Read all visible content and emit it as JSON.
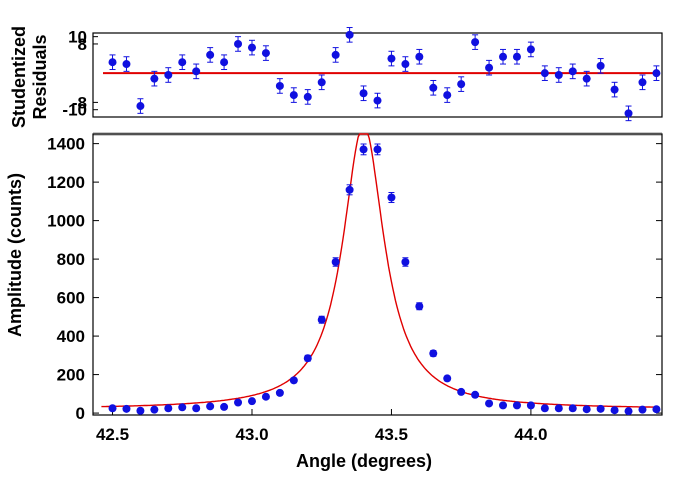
{
  "chart_data": [
    {
      "type": "scatter",
      "title": "",
      "ylabel": "Studentized Residuals",
      "ylabel_lines": [
        "Studentized",
        "Residuals"
      ],
      "ylim": [
        -12,
        11
      ],
      "yticks": [
        10,
        8,
        -8,
        -10
      ],
      "xlim": [
        42.43,
        44.47
      ],
      "fit_line": {
        "y": 0,
        "color": "#e00000"
      },
      "marker_color": "#1010e0",
      "grid": false,
      "series": [
        {
          "x": [
            42.5,
            42.55,
            42.6,
            42.65,
            42.7,
            42.75,
            42.8,
            42.85,
            42.9,
            42.95,
            43.0,
            43.05,
            43.1,
            43.15,
            43.2,
            43.25,
            43.3,
            43.35,
            43.4,
            43.45,
            43.5,
            43.55,
            43.6,
            43.65,
            43.7,
            43.75,
            43.8,
            43.85,
            43.9,
            43.95,
            44.0,
            44.05,
            44.1,
            44.15,
            44.2,
            44.25,
            44.3,
            44.35,
            44.4,
            44.45
          ],
          "y": [
            3,
            2.5,
            -9,
            -1.5,
            -0.5,
            3,
            0.5,
            5,
            3,
            8,
            7,
            5.5,
            -3.5,
            -6,
            -6.5,
            -2.5,
            5,
            10.5,
            -5.5,
            -7.5,
            4,
            2.5,
            4.5,
            -4,
            -6,
            -3,
            8.5,
            1.5,
            4.5,
            4.5,
            6.5,
            0,
            -0.5,
            0.5,
            -1.5,
            2,
            -4.5,
            -11,
            -2.5,
            0
          ],
          "err": [
            2,
            2,
            2,
            2,
            2,
            2,
            2,
            2,
            2,
            2,
            2,
            2,
            2,
            2,
            2,
            2,
            2,
            2,
            2,
            2,
            2,
            2,
            2,
            2,
            2,
            2,
            2,
            2,
            2,
            2,
            2,
            2,
            2,
            2,
            2,
            2,
            2,
            2,
            2,
            2
          ]
        }
      ]
    },
    {
      "type": "scatter",
      "title": "",
      "xlabel": "Angle (degrees)",
      "ylabel": "Amplitude (counts)",
      "xlim": [
        42.43,
        44.47
      ],
      "ylim": [
        -10,
        1450
      ],
      "xticks": [
        42.5,
        43.0,
        43.5,
        44.0
      ],
      "xtick_labels": [
        "42.5",
        "43.0",
        "43.5",
        "44.0"
      ],
      "yticks": [
        0,
        200,
        400,
        600,
        800,
        1000,
        1200,
        1400
      ],
      "marker_color": "#1010e0",
      "fit_color": "#e00000",
      "grid": false,
      "series": [
        {
          "x": [
            42.5,
            42.55,
            42.6,
            42.65,
            42.7,
            42.75,
            42.8,
            42.85,
            42.9,
            42.95,
            43.0,
            43.05,
            43.1,
            43.15,
            43.2,
            43.25,
            43.3,
            43.35,
            43.4,
            43.45,
            43.5,
            43.55,
            43.6,
            43.65,
            43.7,
            43.75,
            43.8,
            43.85,
            43.9,
            43.95,
            44.0,
            44.05,
            44.1,
            44.15,
            44.2,
            44.25,
            44.3,
            44.35,
            44.4,
            44.45
          ],
          "y": [
            25,
            22,
            12,
            18,
            25,
            30,
            25,
            35,
            32,
            55,
            62,
            85,
            105,
            170,
            285,
            485,
            785,
            1160,
            1370,
            1370,
            1120,
            785,
            555,
            310,
            180,
            110,
            95,
            50,
            40,
            40,
            40,
            25,
            25,
            25,
            20,
            22,
            15,
            10,
            18,
            20
          ],
          "err": [
            10,
            10,
            10,
            10,
            10,
            10,
            10,
            10,
            10,
            10,
            10,
            10,
            10,
            12,
            15,
            18,
            22,
            26,
            28,
            28,
            26,
            22,
            18,
            15,
            12,
            10,
            10,
            10,
            10,
            10,
            10,
            10,
            10,
            10,
            10,
            10,
            10,
            10,
            10,
            10
          ]
        }
      ],
      "fit": {
        "model": "lorentzian",
        "center": 43.4,
        "hwhm": 0.09,
        "amplitude": 1480,
        "background": 20
      }
    }
  ]
}
